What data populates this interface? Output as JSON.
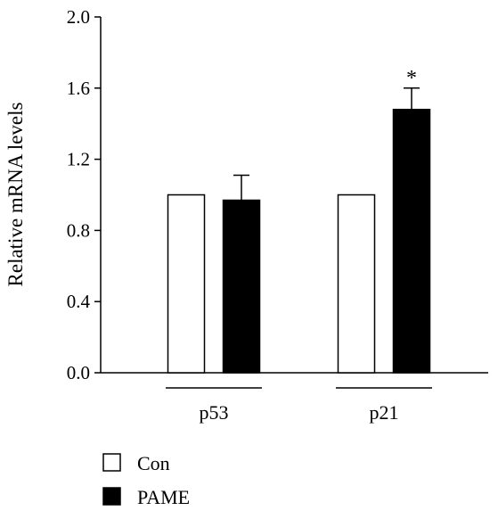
{
  "chart_data": {
    "type": "bar",
    "title": "",
    "xlabel": "",
    "ylabel": "Relative mRNA levels",
    "ylim": [
      0,
      2.0
    ],
    "yticks": [
      "0.0",
      "0.4",
      "0.8",
      "1.2",
      "1.6",
      "2.0"
    ],
    "categories": [
      "p53",
      "p21"
    ],
    "series": [
      {
        "name": "Con",
        "values": [
          1.0,
          1.0
        ],
        "errors": [
          0,
          0
        ],
        "color": "#ffffff"
      },
      {
        "name": "PAME",
        "values": [
          0.97,
          1.48
        ],
        "errors": [
          0.14,
          0.12
        ],
        "color": "#000000"
      }
    ],
    "annotations": [
      {
        "category": "p21",
        "series": "PAME",
        "text": "*"
      }
    ],
    "grid": false,
    "legend_position": "bottom-left"
  }
}
